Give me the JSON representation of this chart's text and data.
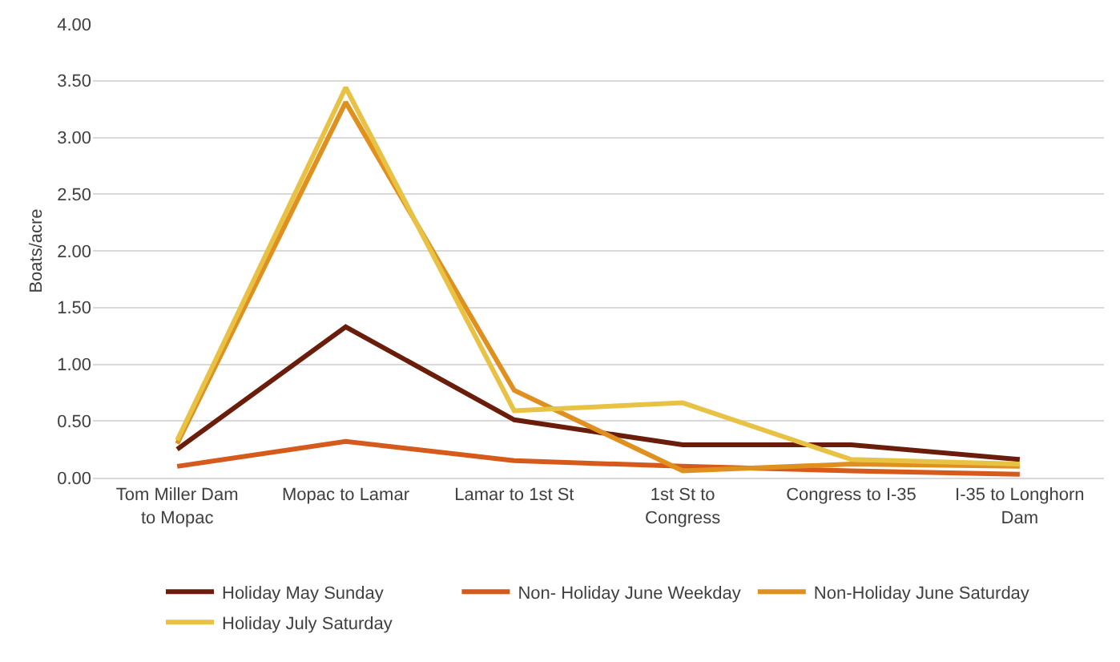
{
  "chart_data": {
    "type": "line",
    "ylabel": "Boats/acre",
    "categories": [
      "Tom Miller Dam to Mopac",
      "Mopac to Lamar",
      "Lamar to 1st St",
      "1st St to Congress",
      "Congress to I-35",
      "I-35 to Longhorn Dam"
    ],
    "series": [
      {
        "name": "Holiday May Sunday",
        "color": "#6b1d0c",
        "values": [
          0.25,
          1.33,
          0.51,
          0.29,
          0.29,
          0.16
        ]
      },
      {
        "name": "Non- Holiday June Weekday",
        "color": "#d65a1c",
        "values": [
          0.1,
          0.32,
          0.15,
          0.1,
          0.06,
          0.03
        ]
      },
      {
        "name": "Non-Holiday June Saturday",
        "color": "#e0901e",
        "values": [
          0.3,
          3.31,
          0.77,
          0.06,
          0.12,
          0.1
        ]
      },
      {
        "name": "Holiday July Saturday",
        "color": "#e8c244",
        "values": [
          0.33,
          3.44,
          0.59,
          0.66,
          0.16,
          0.12
        ]
      }
    ],
    "ylim": [
      0,
      4
    ],
    "yticks": [
      {
        "value": 0,
        "label": "0.00"
      },
      {
        "value": 0.5,
        "label": "0.50"
      },
      {
        "value": 1,
        "label": "1.00"
      },
      {
        "value": 1.5,
        "label": "1.50"
      },
      {
        "value": 2,
        "label": "2.00"
      },
      {
        "value": 2.5,
        "label": "2.50"
      },
      {
        "value": 3,
        "label": "3.00"
      },
      {
        "value": 3.5,
        "label": "3.50"
      },
      {
        "value": 4,
        "label": "4.00"
      }
    ],
    "grid": "y",
    "legend": "bottom",
    "marker": "none",
    "line_style": "solid"
  }
}
